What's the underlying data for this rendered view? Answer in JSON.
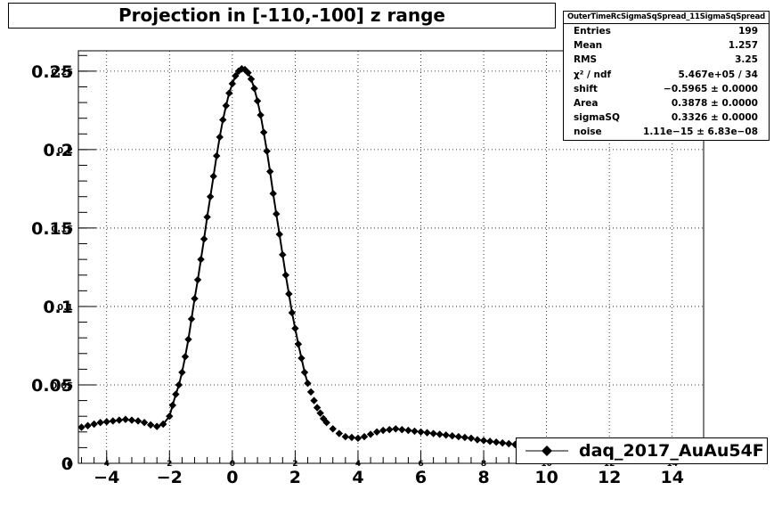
{
  "title": "Projection in [-110,-100] z range",
  "stats": {
    "name": "OuterTimeRcSigmaSqSpread_11SigmaSqSpread",
    "rows": [
      {
        "key": "Entries",
        "value": "199"
      },
      {
        "key": "Mean",
        "value": "1.257"
      },
      {
        "key": "RMS",
        "value": "3.25"
      },
      {
        "key": "χ² / ndf",
        "value": "5.467e+05 / 34"
      },
      {
        "key": "shift",
        "value": "−0.5965 ± 0.0000"
      },
      {
        "key": "Area",
        "value": "0.3878 ± 0.0000"
      },
      {
        "key": "sigmaSQ",
        "value": "0.3326 ± 0.0000"
      },
      {
        "key": "noise",
        "value": "1.11e−15 ± 6.83e−08"
      }
    ]
  },
  "legend": {
    "label": "daq_2017_AuAu54F"
  },
  "colors": {
    "marker": "#000000",
    "grid": "#000000",
    "background": "#ffffff"
  },
  "chart_data": {
    "type": "scatter",
    "grid": true,
    "legend_position": "bottom-right",
    "xlim": [
      -4.9,
      15.0
    ],
    "ylim": [
      0,
      0.263
    ],
    "x_ticks": [
      -4,
      -2,
      0,
      2,
      4,
      6,
      8,
      10,
      12,
      14
    ],
    "y_ticks": [
      0,
      0.05,
      0.1,
      0.15,
      0.2,
      0.25
    ],
    "x_tick_labels": [
      "−4",
      "−2",
      "0",
      "2",
      "4",
      "6",
      "8",
      "10",
      "12",
      "14"
    ],
    "y_tick_labels": [
      "0",
      "0.05",
      "0.1",
      "0.15",
      "0.2",
      "0.25"
    ],
    "x_tick_labels_secondary": [
      "4",
      "2",
      "0",
      "2",
      "4",
      "6",
      "8",
      "10",
      "12",
      "14"
    ],
    "y_tick_labels_secondary": [
      "0",
      "0.05",
      "0.1",
      "0.15",
      "0.2",
      "0.25"
    ],
    "series": [
      {
        "name": "daq_2017_AuAu54F",
        "x": [
          -4.8,
          -4.6,
          -4.4,
          -4.2,
          -4.0,
          -3.8,
          -3.6,
          -3.4,
          -3.2,
          -3.0,
          -2.8,
          -2.6,
          -2.4,
          -2.2,
          -2.0,
          -1.9,
          -1.8,
          -1.7,
          -1.6,
          -1.5,
          -1.4,
          -1.3,
          -1.2,
          -1.1,
          -1.0,
          -0.9,
          -0.8,
          -0.7,
          -0.6,
          -0.5,
          -0.4,
          -0.3,
          -0.2,
          -0.1,
          0.0,
          0.1,
          0.2,
          0.3,
          0.4,
          0.5,
          0.6,
          0.7,
          0.8,
          0.9,
          1.0,
          1.1,
          1.2,
          1.3,
          1.4,
          1.5,
          1.6,
          1.7,
          1.8,
          1.9,
          2.0,
          2.1,
          2.2,
          2.3,
          2.4,
          2.5,
          2.6,
          2.7,
          2.8,
          2.9,
          3.0,
          3.2,
          3.4,
          3.6,
          3.8,
          4.0,
          4.2,
          4.4,
          4.6,
          4.8,
          5.0,
          5.2,
          5.4,
          5.6,
          5.8,
          6.0,
          6.2,
          6.4,
          6.6,
          6.8,
          7.0,
          7.2,
          7.4,
          7.6,
          7.8,
          8.0,
          8.2,
          8.4,
          8.6,
          8.8,
          9.0,
          9.2,
          9.4
        ],
        "y": [
          0.023,
          0.024,
          0.025,
          0.026,
          0.0265,
          0.027,
          0.0275,
          0.028,
          0.0275,
          0.027,
          0.026,
          0.0245,
          0.0235,
          0.025,
          0.03,
          0.037,
          0.044,
          0.05,
          0.058,
          0.068,
          0.079,
          0.092,
          0.105,
          0.117,
          0.13,
          0.143,
          0.157,
          0.17,
          0.183,
          0.196,
          0.208,
          0.219,
          0.228,
          0.236,
          0.242,
          0.247,
          0.25,
          0.2515,
          0.251,
          0.249,
          0.245,
          0.239,
          0.231,
          0.222,
          0.211,
          0.199,
          0.186,
          0.172,
          0.159,
          0.146,
          0.133,
          0.12,
          0.108,
          0.096,
          0.086,
          0.076,
          0.067,
          0.058,
          0.051,
          0.0455,
          0.04,
          0.0355,
          0.032,
          0.0285,
          0.026,
          0.022,
          0.019,
          0.017,
          0.0165,
          0.016,
          0.017,
          0.0185,
          0.02,
          0.021,
          0.0215,
          0.022,
          0.0215,
          0.021,
          0.0205,
          0.02,
          0.0195,
          0.019,
          0.0185,
          0.018,
          0.0175,
          0.017,
          0.0165,
          0.016,
          0.015,
          0.0145,
          0.014,
          0.0135,
          0.013,
          0.0125,
          0.012,
          0.0118,
          0.0115
        ],
        "fit_curve": true
      }
    ]
  }
}
